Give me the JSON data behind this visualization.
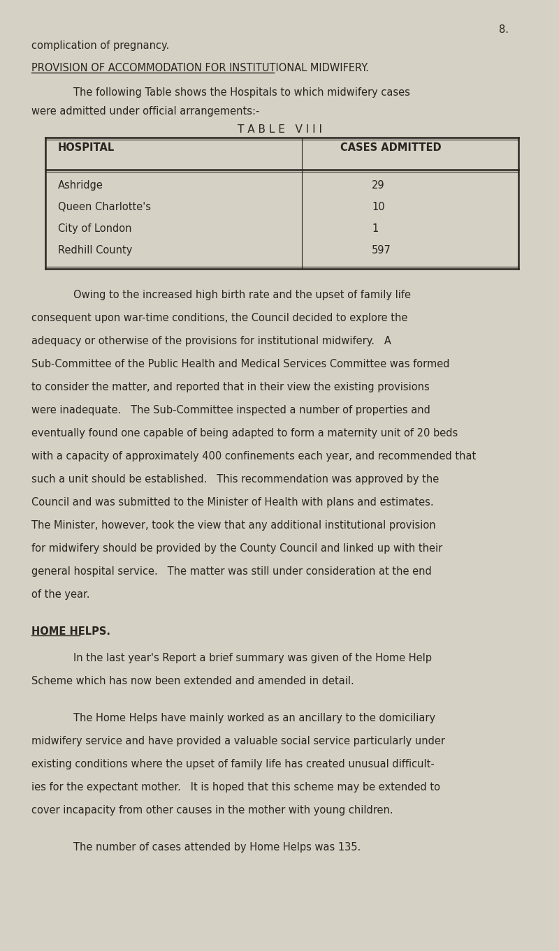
{
  "bg_color": "#d5d1c5",
  "text_color": "#2a2520",
  "page_number": "8.",
  "line1": "complication of pregnancy.",
  "heading": "PROVISION OF ACCOMMODATION FOR INSTITUTIONAL MIDWIFERY.",
  "intro1": "The following Table shows the Hospitals to which midwifery cases",
  "intro2": "were admitted under official arrangements:-",
  "table_title": "T A B L E   V I I I",
  "col1_header": "HOSPITAL",
  "col2_header": "CASES ADMITTED",
  "hospitals": [
    "Ashridge",
    "Queen Charlotte's",
    "City of London",
    "Redhill County"
  ],
  "cases": [
    "29",
    "10",
    "1",
    "597"
  ],
  "para1_lines": [
    "Owing to the increased high birth rate and the upset of family life",
    "consequent upon war-time conditions, the Council decided to explore the",
    "adequacy or otherwise of the provisions for institutional midwifery.   A",
    "Sub-Committee of the Public Health and Medical Services Committee was formed",
    "to consider the matter, and reported that in their view the existing provisions",
    "were inadequate.   The Sub-Committee inspected a number of properties and",
    "eventually found one capable of being adapted to form a maternity unit of 20 beds",
    "with a capacity of approximately 400 confinements each year, and recommended that",
    "such a unit should be established.   This recommendation was approved by the",
    "Council and was submitted to the Minister of Health with plans and estimates.",
    "The Minister, however, took the view that any additional institutional provision",
    "for midwifery should be provided by the County Council and linked up with their",
    "general hospital service.   The matter was still under consideration at the end",
    "of the year."
  ],
  "home_helps_heading": "HOME HELPS.",
  "para2_lines": [
    "In the last year's Report a brief summary was given of the Home Help",
    "Scheme which has now been extended and amended in detail."
  ],
  "para3_lines": [
    "The Home Helps have mainly worked as an ancillary to the domiciliary",
    "midwifery service and have provided a valuable social service particularly under",
    "existing conditions where the upset of family life has created unusual difficult-",
    "ies for the expectant mother.   It is hoped that this scheme may be extended to",
    "cover incapacity from other causes in the mother with young children."
  ],
  "para4": "The number of cases attended by Home Helps was 135."
}
